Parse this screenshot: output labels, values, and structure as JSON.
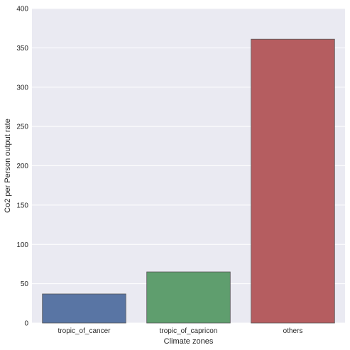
{
  "chart_data": {
    "type": "bar",
    "categories": [
      "tropic_of_cancer",
      "tropic_of_capricon",
      "others"
    ],
    "values": [
      37,
      65,
      361
    ],
    "colors": [
      "#5975a4",
      "#5f9e6e",
      "#b55d60"
    ],
    "background_color": "#eaeaf2",
    "grid_color": "#ffffff",
    "xlabel": "Climate zones",
    "ylabel": "Co2 per Person output rate",
    "ylim": [
      0,
      400
    ],
    "yticks": [
      0,
      50,
      100,
      150,
      200,
      250,
      300,
      350,
      400
    ],
    "ytick_labels": [
      "0",
      "50",
      "100",
      "150",
      "200",
      "250",
      "300",
      "350",
      "400"
    ],
    "grid": "y-major"
  }
}
